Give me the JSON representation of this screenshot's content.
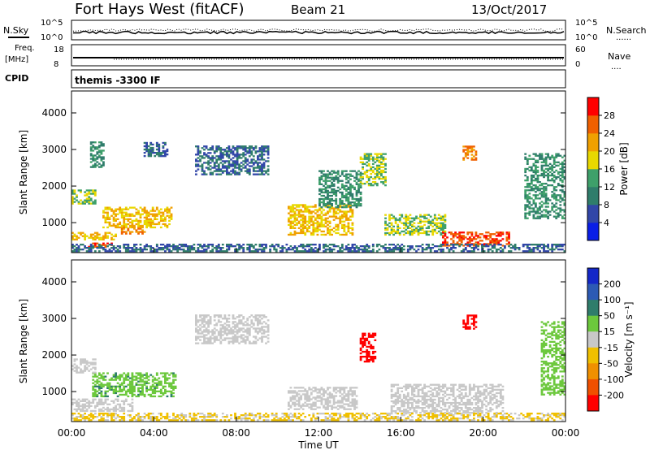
{
  "header": {
    "station": "Fort Hays West (fitACF)",
    "beam": "Beam 21",
    "date": "13/Oct/2017"
  },
  "strips": {
    "nsky_label": "N.Sky",
    "nsearch_label": "N.Search",
    "nsearch_style": "......",
    "noise_ticks": [
      "10^5",
      "10^0"
    ],
    "freq_label_line1": "Freq.",
    "freq_label_line2": "[MHz]",
    "freq_ticks": [
      "18",
      "8"
    ],
    "nave_label": "Nave",
    "nave_style": "....",
    "nave_ticks": [
      "60",
      "0"
    ],
    "cpid_label": "CPID",
    "cpid_text": "themis -3300 IF"
  },
  "panels": {
    "ylabel": "Slant Range [km]",
    "yticks": [
      1000,
      2000,
      3000,
      4000
    ],
    "xlabel": "Time UT",
    "xticks": [
      "00:00",
      "04:00",
      "08:00",
      "12:00",
      "16:00",
      "20:00",
      "00:00"
    ]
  },
  "power_scale": {
    "label": "Power [dB]",
    "ticks": [
      "4",
      "8",
      "12",
      "16",
      "20",
      "24",
      "28"
    ],
    "colors": [
      "#0a1ee6",
      "#3146a8",
      "#2f7d6b",
      "#3ea06a",
      "#e8d800",
      "#f0a000",
      "#f06000",
      "#ff0000"
    ]
  },
  "velocity_scale": {
    "label": "Velocity [m s⁻¹]",
    "ticks": [
      "200",
      "100",
      "50",
      "15",
      "-15",
      "-50",
      "-100",
      "-200"
    ],
    "colors": [
      "#1428c8",
      "#2c5ab4",
      "#2f7d6b",
      "#6cc83c",
      "#c8c8c8",
      "#f0c000",
      "#f09000",
      "#f05000",
      "#ff0000"
    ]
  },
  "chart_data": {
    "type": "heatmap",
    "x_range_hours": [
      0,
      24
    ],
    "y_range_km": [
      180,
      4600
    ],
    "power_regions": [
      {
        "t": [
          0.0,
          2.2
        ],
        "r": [
          520,
          720
        ],
        "dB": 20
      },
      {
        "t": [
          0.8,
          2.0
        ],
        "r": [
          320,
          440
        ],
        "dB": 28
      },
      {
        "t": [
          2.4,
          3.6
        ],
        "r": [
          680,
          880
        ],
        "dB": 24
      },
      {
        "t": [
          0.0,
          1.2
        ],
        "r": [
          1500,
          1900
        ],
        "dB": 16
      },
      {
        "t": [
          1.5,
          4.8
        ],
        "r": [
          850,
          1400
        ],
        "dB": 20
      },
      {
        "t": [
          0.9,
          1.6
        ],
        "r": [
          2500,
          3200
        ],
        "dB": 12
      },
      {
        "t": [
          3.5,
          4.6
        ],
        "r": [
          2800,
          3200
        ],
        "dB": 8
      },
      {
        "t": [
          6.0,
          9.5
        ],
        "r": [
          2300,
          3100
        ],
        "dB": 8
      },
      {
        "t": [
          10.5,
          13.6
        ],
        "r": [
          650,
          1500
        ],
        "dB": 20
      },
      {
        "t": [
          12.0,
          14.0
        ],
        "r": [
          1400,
          2400
        ],
        "dB": 12
      },
      {
        "t": [
          14.0,
          15.2
        ],
        "r": [
          2000,
          2900
        ],
        "dB": 16
      },
      {
        "t": [
          15.2,
          18.2
        ],
        "r": [
          650,
          1200
        ],
        "dB": 16
      },
      {
        "t": [
          18.0,
          21.3
        ],
        "r": [
          350,
          750
        ],
        "dB": 28
      },
      {
        "t": [
          19.0,
          19.7
        ],
        "r": [
          2700,
          3100
        ],
        "dB": 24
      },
      {
        "t": [
          22.0,
          24.0
        ],
        "r": [
          1100,
          2900
        ],
        "dB": 12
      },
      {
        "t": [
          0.0,
          24.0
        ],
        "r": [
          200,
          420
        ],
        "dB": 8
      }
    ],
    "velocity_regions": [
      {
        "t": [
          0.0,
          3.0
        ],
        "r": [
          450,
          800
        ],
        "ms": 0
      },
      {
        "t": [
          1.0,
          5.0
        ],
        "r": [
          850,
          1500
        ],
        "ms": 40
      },
      {
        "t": [
          0.0,
          1.2
        ],
        "r": [
          1500,
          1900
        ],
        "ms": 0
      },
      {
        "t": [
          6.0,
          9.5
        ],
        "r": [
          2300,
          3100
        ],
        "ms": 0
      },
      {
        "t": [
          10.5,
          13.8
        ],
        "r": [
          500,
          1100
        ],
        "ms": 0
      },
      {
        "t": [
          14.0,
          14.7
        ],
        "r": [
          1800,
          2600
        ],
        "ms": -250
      },
      {
        "t": [
          15.5,
          21.0
        ],
        "r": [
          400,
          1200
        ],
        "ms": 0
      },
      {
        "t": [
          19.0,
          19.7
        ],
        "r": [
          2700,
          3100
        ],
        "ms": -250
      },
      {
        "t": [
          22.8,
          24.0
        ],
        "r": [
          900,
          2900
        ],
        "ms": 30
      },
      {
        "t": [
          0.0,
          24.0
        ],
        "r": [
          200,
          420
        ],
        "ms": -20
      }
    ]
  }
}
